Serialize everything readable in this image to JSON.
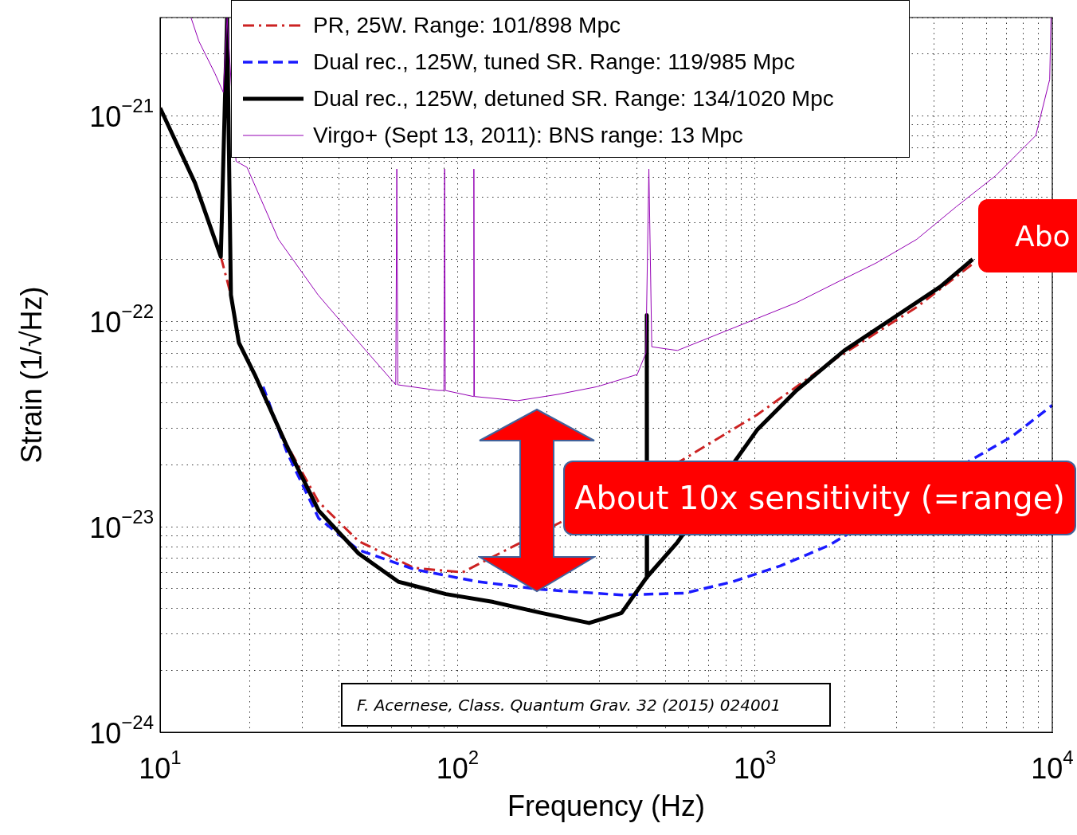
{
  "chart_data": {
    "type": "line",
    "xlabel": "Frequency (Hz)",
    "ylabel": "Strain (1/√Hz)",
    "log": "xy",
    "grid": true,
    "legend": "top",
    "marker": "none",
    "xlim": [
      10,
      10000
    ],
    "ylim": [
      1e-24,
      3e-21
    ],
    "xticks": [
      {
        "value": 10,
        "label": "10$^{1}$"
      },
      {
        "value": 20,
        "label": null
      },
      {
        "value": 30,
        "label": null
      },
      {
        "value": 40,
        "label": null
      },
      {
        "value": 50,
        "label": null
      },
      {
        "value": 60,
        "label": null
      },
      {
        "value": 70,
        "label": null
      },
      {
        "value": 80,
        "label": null
      },
      {
        "value": 90,
        "label": null
      },
      {
        "value": 100,
        "label": "10$^{2}$"
      },
      {
        "value": 200,
        "label": null
      },
      {
        "value": 300,
        "label": null
      },
      {
        "value": 400,
        "label": null
      },
      {
        "value": 500,
        "label": null
      },
      {
        "value": 600,
        "label": null
      },
      {
        "value": 700,
        "label": null
      },
      {
        "value": 800,
        "label": null
      },
      {
        "value": 900,
        "label": null
      },
      {
        "value": 1000,
        "label": "10$^{3}$"
      },
      {
        "value": 2000,
        "label": null
      },
      {
        "value": 3000,
        "label": null
      },
      {
        "value": 4000,
        "label": null
      },
      {
        "value": 5000,
        "label": null
      },
      {
        "value": 6000,
        "label": null
      },
      {
        "value": 7000,
        "label": null
      },
      {
        "value": 8000,
        "label": null
      },
      {
        "value": 9000,
        "label": null
      },
      {
        "value": 10000,
        "label": "10$^{4}$"
      }
    ],
    "yticks": [
      {
        "value": 1e-24,
        "label": "10$^{−24}$"
      },
      {
        "value": 2e-24,
        "label": null
      },
      {
        "value": 3e-24,
        "label": null
      },
      {
        "value": 4e-24,
        "label": null
      },
      {
        "value": 5e-24,
        "label": null
      },
      {
        "value": 6e-24,
        "label": null
      },
      {
        "value": 7e-24,
        "label": null
      },
      {
        "value": 8e-24,
        "label": null
      },
      {
        "value": 9e-24,
        "label": null
      },
      {
        "value": 1e-23,
        "label": "10$^{−23}$"
      },
      {
        "value": 2e-23,
        "label": null
      },
      {
        "value": 3e-23,
        "label": null
      },
      {
        "value": 4e-23,
        "label": null
      },
      {
        "value": 5e-23,
        "label": null
      },
      {
        "value": 6e-23,
        "label": null
      },
      {
        "value": 7e-23,
        "label": null
      },
      {
        "value": 8e-23,
        "label": null
      },
      {
        "value": 9e-23,
        "label": null
      },
      {
        "value": 1e-22,
        "label": "10$^{−22}$"
      },
      {
        "value": 2e-22,
        "label": null
      },
      {
        "value": 3e-22,
        "label": null
      },
      {
        "value": 4e-22,
        "label": null
      },
      {
        "value": 5e-22,
        "label": null
      },
      {
        "value": 6e-22,
        "label": null
      },
      {
        "value": 7e-22,
        "label": null
      },
      {
        "value": 8e-22,
        "label": null
      },
      {
        "value": 9e-22,
        "label": null
      },
      {
        "value": 1e-21,
        "label": "10$^{−21}$"
      },
      {
        "value": 2e-21,
        "label": null
      },
      {
        "value": 3e-21,
        "label": null
      }
    ],
    "series": [
      {
        "name": "PR, 25W. Range: 101/898 Mpc",
        "color": "#cc2222",
        "line_style": "dashdot",
        "x": [
          10,
          13.1,
          16,
          17.3,
          18.4,
          20.8,
          26.7,
          34.1,
          46.5,
          71.5,
          104,
          567,
          1016,
          1880,
          3500,
          5400
        ],
        "values": [
          1.09e-21,
          4.7e-22,
          2.06e-22,
          1.34e-22,
          7.85e-23,
          5.5e-23,
          2.5e-23,
          1.32e-23,
          8.5e-24,
          6.3e-24,
          6e-24,
          2.1e-23,
          3.5e-23,
          6.6e-23,
          1.17e-22,
          1.9e-22
        ]
      },
      {
        "name": "Dual rec., 125W, tuned SR. Range: 119/985 Mpc",
        "color": "#1a1aff",
        "line_style": "dashed",
        "x": [
          22.2,
          26.7,
          34.1,
          46.5,
          71.5,
          117,
          192,
          356,
          582,
          843,
          1220,
          1770,
          5300,
          7300,
          10000
        ],
        "values": [
          4.8e-23,
          2.3e-23,
          1.1e-23,
          7.7e-24,
          6.2e-24,
          5.4e-24,
          4.95e-24,
          4.65e-24,
          4.75e-24,
          5.4e-24,
          6.45e-24,
          8.1e-24,
          2.1e-23,
          2.74e-23,
          3.9e-23
        ]
      },
      {
        "name": "Dual rec., 125W, detuned SR. Range: 134/1020 Mpc",
        "color": "#000000",
        "line_style": "solid",
        "x": [
          10,
          13.1,
          16,
          16.8,
          17.3,
          18.4,
          20.8,
          26.7,
          34.1,
          46.5,
          63.2,
          91.4,
          132,
          192,
          277,
          356,
          432,
          433,
          434,
          549,
          1016,
          1379,
          2000,
          2900,
          4200,
          5400
        ],
        "values": [
          1.09e-21,
          4.7e-22,
          2.06e-22,
          3e-21,
          1.34e-22,
          7.85e-23,
          5.5e-23,
          2.46e-23,
          1.2e-23,
          7.4e-24,
          5.4e-24,
          4.7e-24,
          4.3e-24,
          3.8e-24,
          3.4e-24,
          3.8e-24,
          5.65e-24,
          1.07e-22,
          5.7e-24,
          8.4e-24,
          2.95e-23,
          4.6e-23,
          7.2e-23,
          1.03e-22,
          1.47e-22,
          2e-22
        ]
      },
      {
        "name": "Virgo+ (Sept 13, 2011): BNS range: 13 Mpc",
        "color": "#9400b4",
        "line_style": "solid",
        "x": [
          12.7,
          13.5,
          15.3,
          16.3,
          16.8,
          18,
          19.6,
          25,
          34,
          46.5,
          62,
          62.5,
          63,
          86,
          90,
          90.5,
          91,
          113,
          113.5,
          114,
          159,
          217,
          295,
          402,
          430,
          440,
          450,
          549,
          745,
          1016,
          1379,
          1880,
          2560,
          3500,
          4750,
          6450,
          8800,
          9800,
          9900
        ],
        "values": [
          3e-21,
          2.3e-21,
          1.6e-21,
          1.3e-21,
          3e-21,
          6e-22,
          5.6e-22,
          2.5e-22,
          1.34e-22,
          7.9e-23,
          4.9e-23,
          5.5e-22,
          4.9e-23,
          4.6e-23,
          4.6e-23,
          5.5e-22,
          4.6e-23,
          4.3e-23,
          5.5e-22,
          4.3e-23,
          4.1e-23,
          4.4e-23,
          4.8e-23,
          5.5e-23,
          7e-23,
          5.5e-22,
          7.5e-23,
          7.2e-23,
          8.6e-23,
          1.03e-22,
          1.23e-22,
          1.54e-22,
          1.92e-22,
          2.5e-22,
          3.6e-22,
          5.1e-22,
          8e-22,
          1.5e-21,
          3e-21
        ]
      }
    ],
    "annotations": [
      "About 10x sensitivity (=range)",
      "Abo",
      "F. Acernese, Class. Quantum Grav. 32 (2015) 024001"
    ]
  }
}
